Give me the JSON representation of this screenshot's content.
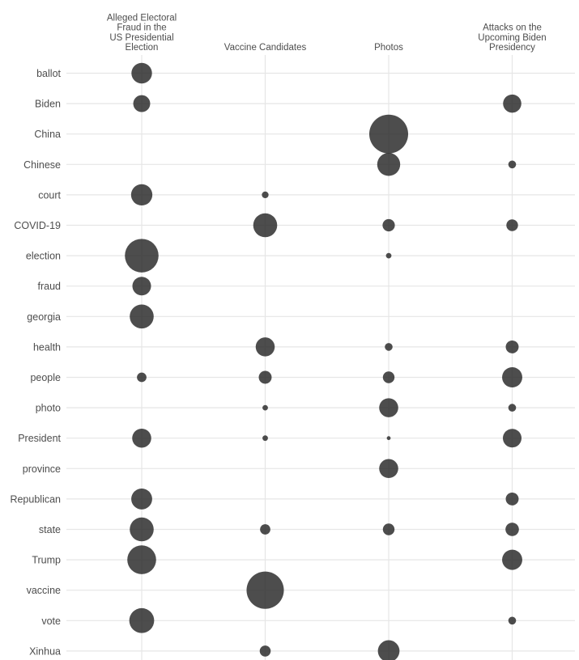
{
  "chart_data": {
    "type": "scatter",
    "subtype": "bubble-matrix",
    "columns": [
      {
        "key": "fraud",
        "label_lines": [
          "Alleged Electoral",
          "Fraud in the",
          "US Presidential",
          "Election"
        ]
      },
      {
        "key": "vaccine",
        "label_lines": [
          "Vaccine Candidates"
        ]
      },
      {
        "key": "photos",
        "label_lines": [
          "Photos"
        ]
      },
      {
        "key": "biden",
        "label_lines": [
          "Attacks on the",
          "Upcoming Biden",
          "Presidency"
        ]
      }
    ],
    "rows": [
      "ballot",
      "Biden",
      "China",
      "Chinese",
      "court",
      "COVID-19",
      "election",
      "fraud",
      "georgia",
      "health",
      "people",
      "photo",
      "President",
      "province",
      "Republican",
      "state",
      "Trump",
      "vaccine",
      "vote",
      "Xinhua"
    ],
    "size_scale_max": 100,
    "points": [
      {
        "row": "ballot",
        "col": "fraud",
        "value": 28
      },
      {
        "row": "Biden",
        "col": "fraud",
        "value": 19
      },
      {
        "row": "Biden",
        "col": "biden",
        "value": 22
      },
      {
        "row": "China",
        "col": "photos",
        "value": 100
      },
      {
        "row": "Chinese",
        "col": "photos",
        "value": 35
      },
      {
        "row": "Chinese",
        "col": "biden",
        "value": 4
      },
      {
        "row": "court",
        "col": "fraud",
        "value": 30
      },
      {
        "row": "court",
        "col": "vaccine",
        "value": 3
      },
      {
        "row": "COVID-19",
        "col": "vaccine",
        "value": 38
      },
      {
        "row": "COVID-19",
        "col": "photos",
        "value": 10
      },
      {
        "row": "COVID-19",
        "col": "biden",
        "value": 9
      },
      {
        "row": "election",
        "col": "fraud",
        "value": 75
      },
      {
        "row": "election",
        "col": "photos",
        "value": 2
      },
      {
        "row": "fraud",
        "col": "fraud",
        "value": 23
      },
      {
        "row": "georgia",
        "col": "fraud",
        "value": 38
      },
      {
        "row": "health",
        "col": "vaccine",
        "value": 24
      },
      {
        "row": "health",
        "col": "photos",
        "value": 4
      },
      {
        "row": "health",
        "col": "biden",
        "value": 11
      },
      {
        "row": "people",
        "col": "fraud",
        "value": 6
      },
      {
        "row": "people",
        "col": "vaccine",
        "value": 11
      },
      {
        "row": "people",
        "col": "photos",
        "value": 9
      },
      {
        "row": "people",
        "col": "biden",
        "value": 27
      },
      {
        "row": "photo",
        "col": "vaccine",
        "value": 2
      },
      {
        "row": "photo",
        "col": "photos",
        "value": 24
      },
      {
        "row": "photo",
        "col": "biden",
        "value": 4
      },
      {
        "row": "President",
        "col": "fraud",
        "value": 24
      },
      {
        "row": "President",
        "col": "vaccine",
        "value": 2
      },
      {
        "row": "President",
        "col": "photos",
        "value": 1
      },
      {
        "row": "President",
        "col": "biden",
        "value": 23
      },
      {
        "row": "province",
        "col": "photos",
        "value": 24
      },
      {
        "row": "Republican",
        "col": "fraud",
        "value": 29
      },
      {
        "row": "Republican",
        "col": "biden",
        "value": 11
      },
      {
        "row": "state",
        "col": "fraud",
        "value": 38
      },
      {
        "row": "state",
        "col": "vaccine",
        "value": 7
      },
      {
        "row": "state",
        "col": "photos",
        "value": 9
      },
      {
        "row": "state",
        "col": "biden",
        "value": 12
      },
      {
        "row": "Trump",
        "col": "fraud",
        "value": 55
      },
      {
        "row": "Trump",
        "col": "biden",
        "value": 27
      },
      {
        "row": "vaccine",
        "col": "vaccine",
        "value": 92
      },
      {
        "row": "vote",
        "col": "fraud",
        "value": 41
      },
      {
        "row": "vote",
        "col": "biden",
        "value": 4
      },
      {
        "row": "Xinhua",
        "col": "vaccine",
        "value": 8
      },
      {
        "row": "Xinhua",
        "col": "photos",
        "value": 31
      }
    ],
    "title": "",
    "xlabel": "",
    "ylabel": "",
    "grid": true,
    "legend": "none"
  }
}
